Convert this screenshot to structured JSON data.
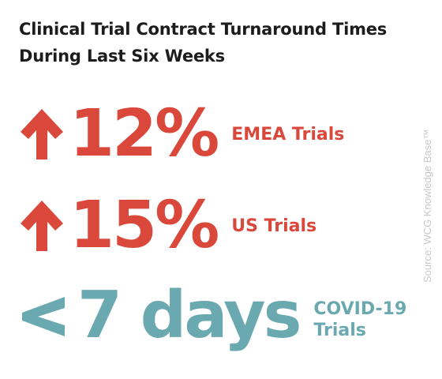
{
  "title": "Clinical Trial Contract Turnaround Times During Last Six Weeks",
  "stats": [
    {
      "icon": "arrow-up-icon",
      "value": "12%",
      "label": "EMEA Trials",
      "color": "#d9483b"
    },
    {
      "icon": "arrow-up-icon",
      "value": "15%",
      "label": "US Trials",
      "color": "#d9483b"
    },
    {
      "icon": "less-than-icon",
      "value": "7 days",
      "label": "COVID-19 Trials",
      "color": "#6ba9b0"
    }
  ],
  "source": "Source: WCG Knowledge Base™"
}
